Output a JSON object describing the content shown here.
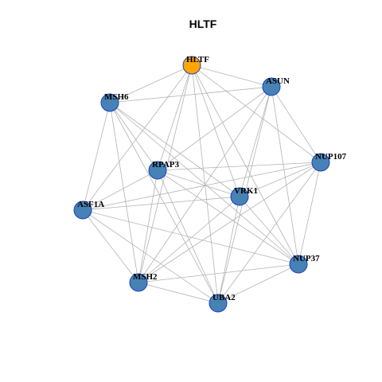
{
  "title": "HLTF",
  "nodes": [
    {
      "label": "HLTF"
    },
    {
      "label": "ASUN"
    },
    {
      "label": "MSH6"
    },
    {
      "label": "NUP107"
    },
    {
      "label": "RPAP3"
    },
    {
      "label": "VRK1"
    },
    {
      "label": "ASF1A"
    },
    {
      "label": "NUP37"
    },
    {
      "label": "MSH2"
    },
    {
      "label": "UBA2"
    }
  ]
}
